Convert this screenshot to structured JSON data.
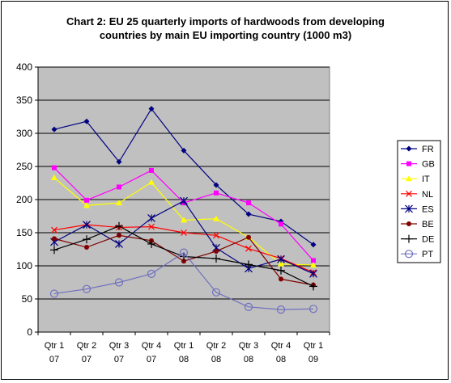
{
  "chart_data": {
    "type": "line",
    "title_lines": [
      "Chart 2: EU 25 quarterly imports of hardwoods from developing",
      "countries by main EU importing country (1000 m3)"
    ],
    "x": [
      [
        "Qtr 1",
        "07"
      ],
      [
        "Qtr 2",
        "07"
      ],
      [
        "Qtr 3",
        "07"
      ],
      [
        "Qtr 4",
        "07"
      ],
      [
        "Qtr 1",
        "08"
      ],
      [
        "Qtr 2",
        "08"
      ],
      [
        "Qtr 3",
        "08"
      ],
      [
        "Qtr 4",
        "08"
      ],
      [
        "Qtr 1",
        "09"
      ]
    ],
    "ylim": [
      0,
      400
    ],
    "yticks": [
      "0",
      "50",
      "100",
      "150",
      "200",
      "250",
      "300",
      "350",
      "400"
    ],
    "grid": true,
    "plot_background": "#c0c0c0",
    "legend_position": "right",
    "series": [
      {
        "name": "FR",
        "color": "#000080",
        "marker": "diamond",
        "values": [
          306,
          318,
          257,
          337,
          274,
          222,
          178,
          167,
          132
        ]
      },
      {
        "name": "GB",
        "color": "#ff00ff",
        "marker": "square",
        "values": [
          248,
          199,
          219,
          244,
          195,
          210,
          195,
          163,
          108
        ]
      },
      {
        "name": "IT",
        "color": "#ffff00",
        "marker": "triangle",
        "values": [
          233,
          191,
          195,
          226,
          169,
          171,
          143,
          103,
          101
        ]
      },
      {
        "name": "NL",
        "color": "#ff0000",
        "marker": "x",
        "values": [
          154,
          162,
          158,
          159,
          150,
          146,
          126,
          111,
          90
        ]
      },
      {
        "name": "ES",
        "color": "#000080",
        "marker": "star",
        "values": [
          136,
          162,
          133,
          172,
          198,
          127,
          96,
          110,
          88
        ]
      },
      {
        "name": "BE",
        "color": "#800000",
        "marker": "circle",
        "values": [
          141,
          128,
          146,
          138,
          107,
          122,
          143,
          80,
          71
        ]
      },
      {
        "name": "DE",
        "color": "#000000",
        "marker": "plus",
        "values": [
          124,
          140,
          160,
          133,
          114,
          111,
          102,
          93,
          69
        ]
      },
      {
        "name": "PT",
        "color": "#7070c0",
        "marker": "open-circle",
        "values": [
          58,
          65,
          75,
          88,
          120,
          60,
          38,
          34,
          35
        ]
      }
    ]
  }
}
